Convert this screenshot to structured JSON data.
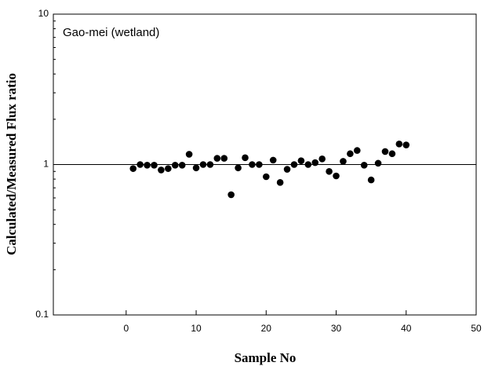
{
  "chart_data": {
    "type": "scatter",
    "annotation": "Gao-mei (wetland)",
    "x_label": "Sample No",
    "y_label": "Calculated/Measured Flux ratio",
    "x": [
      1,
      2,
      3,
      4,
      5,
      6,
      7,
      8,
      9,
      10,
      11,
      12,
      13,
      14,
      15,
      16,
      17,
      18,
      19,
      20,
      21,
      22,
      23,
      24,
      25,
      26,
      27,
      28,
      29,
      30,
      31,
      32,
      33,
      34,
      35,
      36,
      37,
      38,
      39,
      40
    ],
    "series": [
      {
        "color": "#000000",
        "values": [
          0.94,
          1.0,
          0.99,
          0.99,
          0.92,
          0.94,
          0.99,
          0.99,
          1.17,
          0.95,
          1.0,
          1.0,
          1.1,
          1.1,
          0.63,
          0.95,
          1.11,
          1.0,
          1.0,
          0.83,
          1.07,
          0.76,
          0.93,
          1.0,
          1.06,
          1.0,
          1.03,
          1.09,
          0.9,
          0.84,
          1.05,
          1.18,
          1.24,
          0.99,
          0.79,
          1.02,
          1.22,
          1.18,
          1.37,
          1.35
        ]
      }
    ],
    "reference_line": 1,
    "xlim": [
      -10.4,
      50
    ],
    "xticks": [
      0,
      10,
      20,
      30,
      40,
      50
    ],
    "ylim": [
      0.1,
      10
    ],
    "yticks": [
      0.1,
      1,
      10
    ],
    "y_log": true
  }
}
